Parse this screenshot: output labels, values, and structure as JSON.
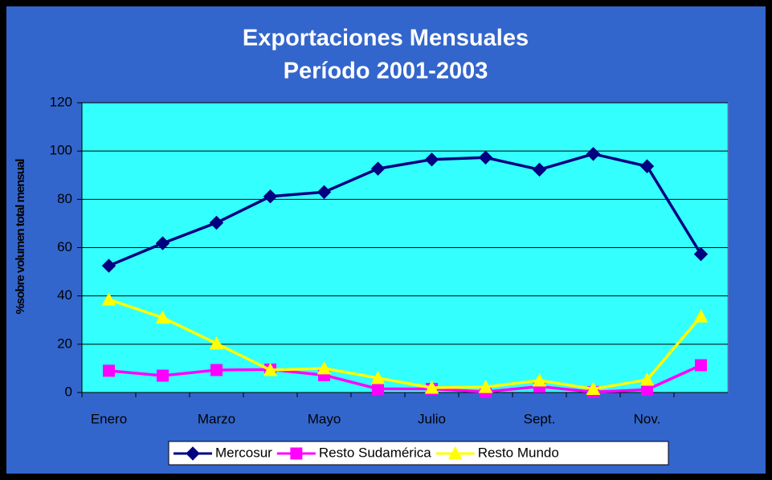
{
  "chart_data": {
    "type": "line",
    "title": "Exportaciones  Mensuales",
    "subtitle": "Período 2001-2003",
    "y_label": "%sobre volumen total mensual",
    "categories": [
      "Enero",
      null,
      "Marzo",
      null,
      "Mayo",
      null,
      "Julio",
      null,
      "Sept.",
      null,
      "Nov.",
      null
    ],
    "series": [
      {
        "name": "Mercosur",
        "color": "#000080",
        "marker": "diamond",
        "values": [
          52.5,
          61.8,
          70.3,
          81.2,
          83,
          92.7,
          96.5,
          97.3,
          92.3,
          98.8,
          93.7,
          57.3
        ]
      },
      {
        "name": "Resto Sudamérica",
        "color": "#ff00ff",
        "marker": "square",
        "values": [
          9,
          7,
          9.3,
          9.5,
          7.2,
          1.5,
          1.5,
          0.3,
          2.5,
          0.2,
          1.2,
          11.3
        ]
      },
      {
        "name": "Resto Mundo",
        "color": "#ffff00",
        "marker": "triangle",
        "values": [
          38.5,
          31,
          20.3,
          9.3,
          10,
          6,
          2,
          2.3,
          5,
          1.5,
          5.3,
          31.5
        ]
      }
    ],
    "ylim": [
      0,
      120
    ],
    "yticks": [
      0,
      20,
      40,
      60,
      80,
      100,
      120
    ],
    "grid": true,
    "legend": "bottom"
  }
}
